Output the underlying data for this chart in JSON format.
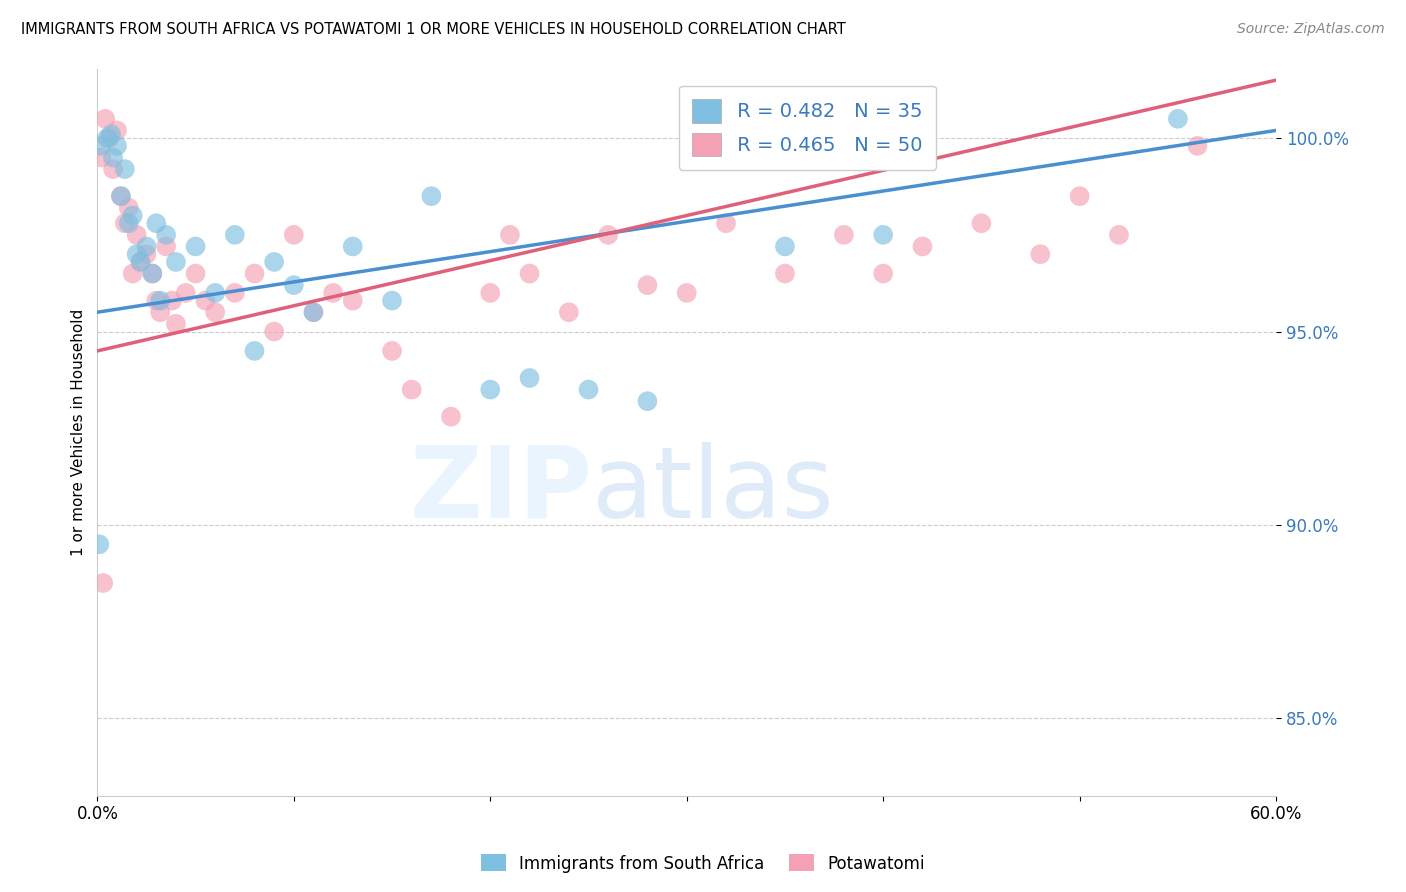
{
  "title": "IMMIGRANTS FROM SOUTH AFRICA VS POTAWATOMI 1 OR MORE VEHICLES IN HOUSEHOLD CORRELATION CHART",
  "source": "Source: ZipAtlas.com",
  "ylabel": "1 or more Vehicles in Household",
  "xmin": 0.0,
  "xmax": 60.0,
  "ymin": 83.0,
  "ymax": 101.8,
  "yticks": [
    85.0,
    90.0,
    95.0,
    100.0
  ],
  "ytick_labels": [
    "85.0%",
    "90.0%",
    "95.0%",
    "100.0%"
  ],
  "xticks": [
    0.0,
    10.0,
    20.0,
    30.0,
    40.0,
    50.0,
    60.0
  ],
  "xtick_labels": [
    "0.0%",
    "",
    "",
    "",
    "",
    "",
    "60.0%"
  ],
  "legend_r1": "R = 0.482",
  "legend_n1": "N = 35",
  "legend_r2": "R = 0.465",
  "legend_n2": "N = 50",
  "blue_color": "#7fbfdf",
  "pink_color": "#f4a0b5",
  "blue_line_color": "#4a90d0",
  "pink_line_color": "#e0607a",
  "legend_label1": "Immigrants from South Africa",
  "legend_label2": "Potawatomi",
  "blue_scatter_x": [
    0.2,
    0.5,
    0.7,
    0.8,
    1.0,
    1.2,
    1.4,
    1.6,
    1.8,
    2.0,
    2.2,
    2.5,
    2.8,
    3.0,
    3.2,
    3.5,
    4.0,
    5.0,
    6.0,
    7.0,
    8.0,
    9.0,
    10.0,
    11.0,
    13.0,
    15.0,
    17.0,
    20.0,
    22.0,
    25.0,
    28.0,
    35.0,
    40.0,
    55.0,
    0.1
  ],
  "blue_scatter_y": [
    99.8,
    100.0,
    100.1,
    99.5,
    99.8,
    98.5,
    99.2,
    97.8,
    98.0,
    97.0,
    96.8,
    97.2,
    96.5,
    97.8,
    95.8,
    97.5,
    96.8,
    97.2,
    96.0,
    97.5,
    94.5,
    96.8,
    96.2,
    95.5,
    97.2,
    95.8,
    98.5,
    93.5,
    93.8,
    93.5,
    93.2,
    97.2,
    97.5,
    100.5,
    89.5
  ],
  "pink_scatter_x": [
    0.2,
    0.4,
    0.6,
    0.8,
    1.0,
    1.2,
    1.4,
    1.6,
    1.8,
    2.0,
    2.2,
    2.5,
    2.8,
    3.0,
    3.2,
    3.5,
    3.8,
    4.0,
    4.5,
    5.0,
    5.5,
    6.0,
    7.0,
    8.0,
    9.0,
    10.0,
    11.0,
    12.0,
    13.0,
    15.0,
    16.0,
    18.0,
    20.0,
    21.0,
    22.0,
    24.0,
    26.0,
    28.0,
    30.0,
    32.0,
    35.0,
    38.0,
    40.0,
    42.0,
    45.0,
    48.0,
    50.0,
    52.0,
    56.0,
    0.3
  ],
  "pink_scatter_y": [
    99.5,
    100.5,
    100.0,
    99.2,
    100.2,
    98.5,
    97.8,
    98.2,
    96.5,
    97.5,
    96.8,
    97.0,
    96.5,
    95.8,
    95.5,
    97.2,
    95.8,
    95.2,
    96.0,
    96.5,
    95.8,
    95.5,
    96.0,
    96.5,
    95.0,
    97.5,
    95.5,
    96.0,
    95.8,
    94.5,
    93.5,
    92.8,
    96.0,
    97.5,
    96.5,
    95.5,
    97.5,
    96.2,
    96.0,
    97.8,
    96.5,
    97.5,
    96.5,
    97.2,
    97.8,
    97.0,
    98.5,
    97.5,
    99.8,
    88.5
  ],
  "blue_line_y0": 95.5,
  "blue_line_y1": 100.2,
  "pink_line_y0": 94.5,
  "pink_line_y1": 101.5
}
